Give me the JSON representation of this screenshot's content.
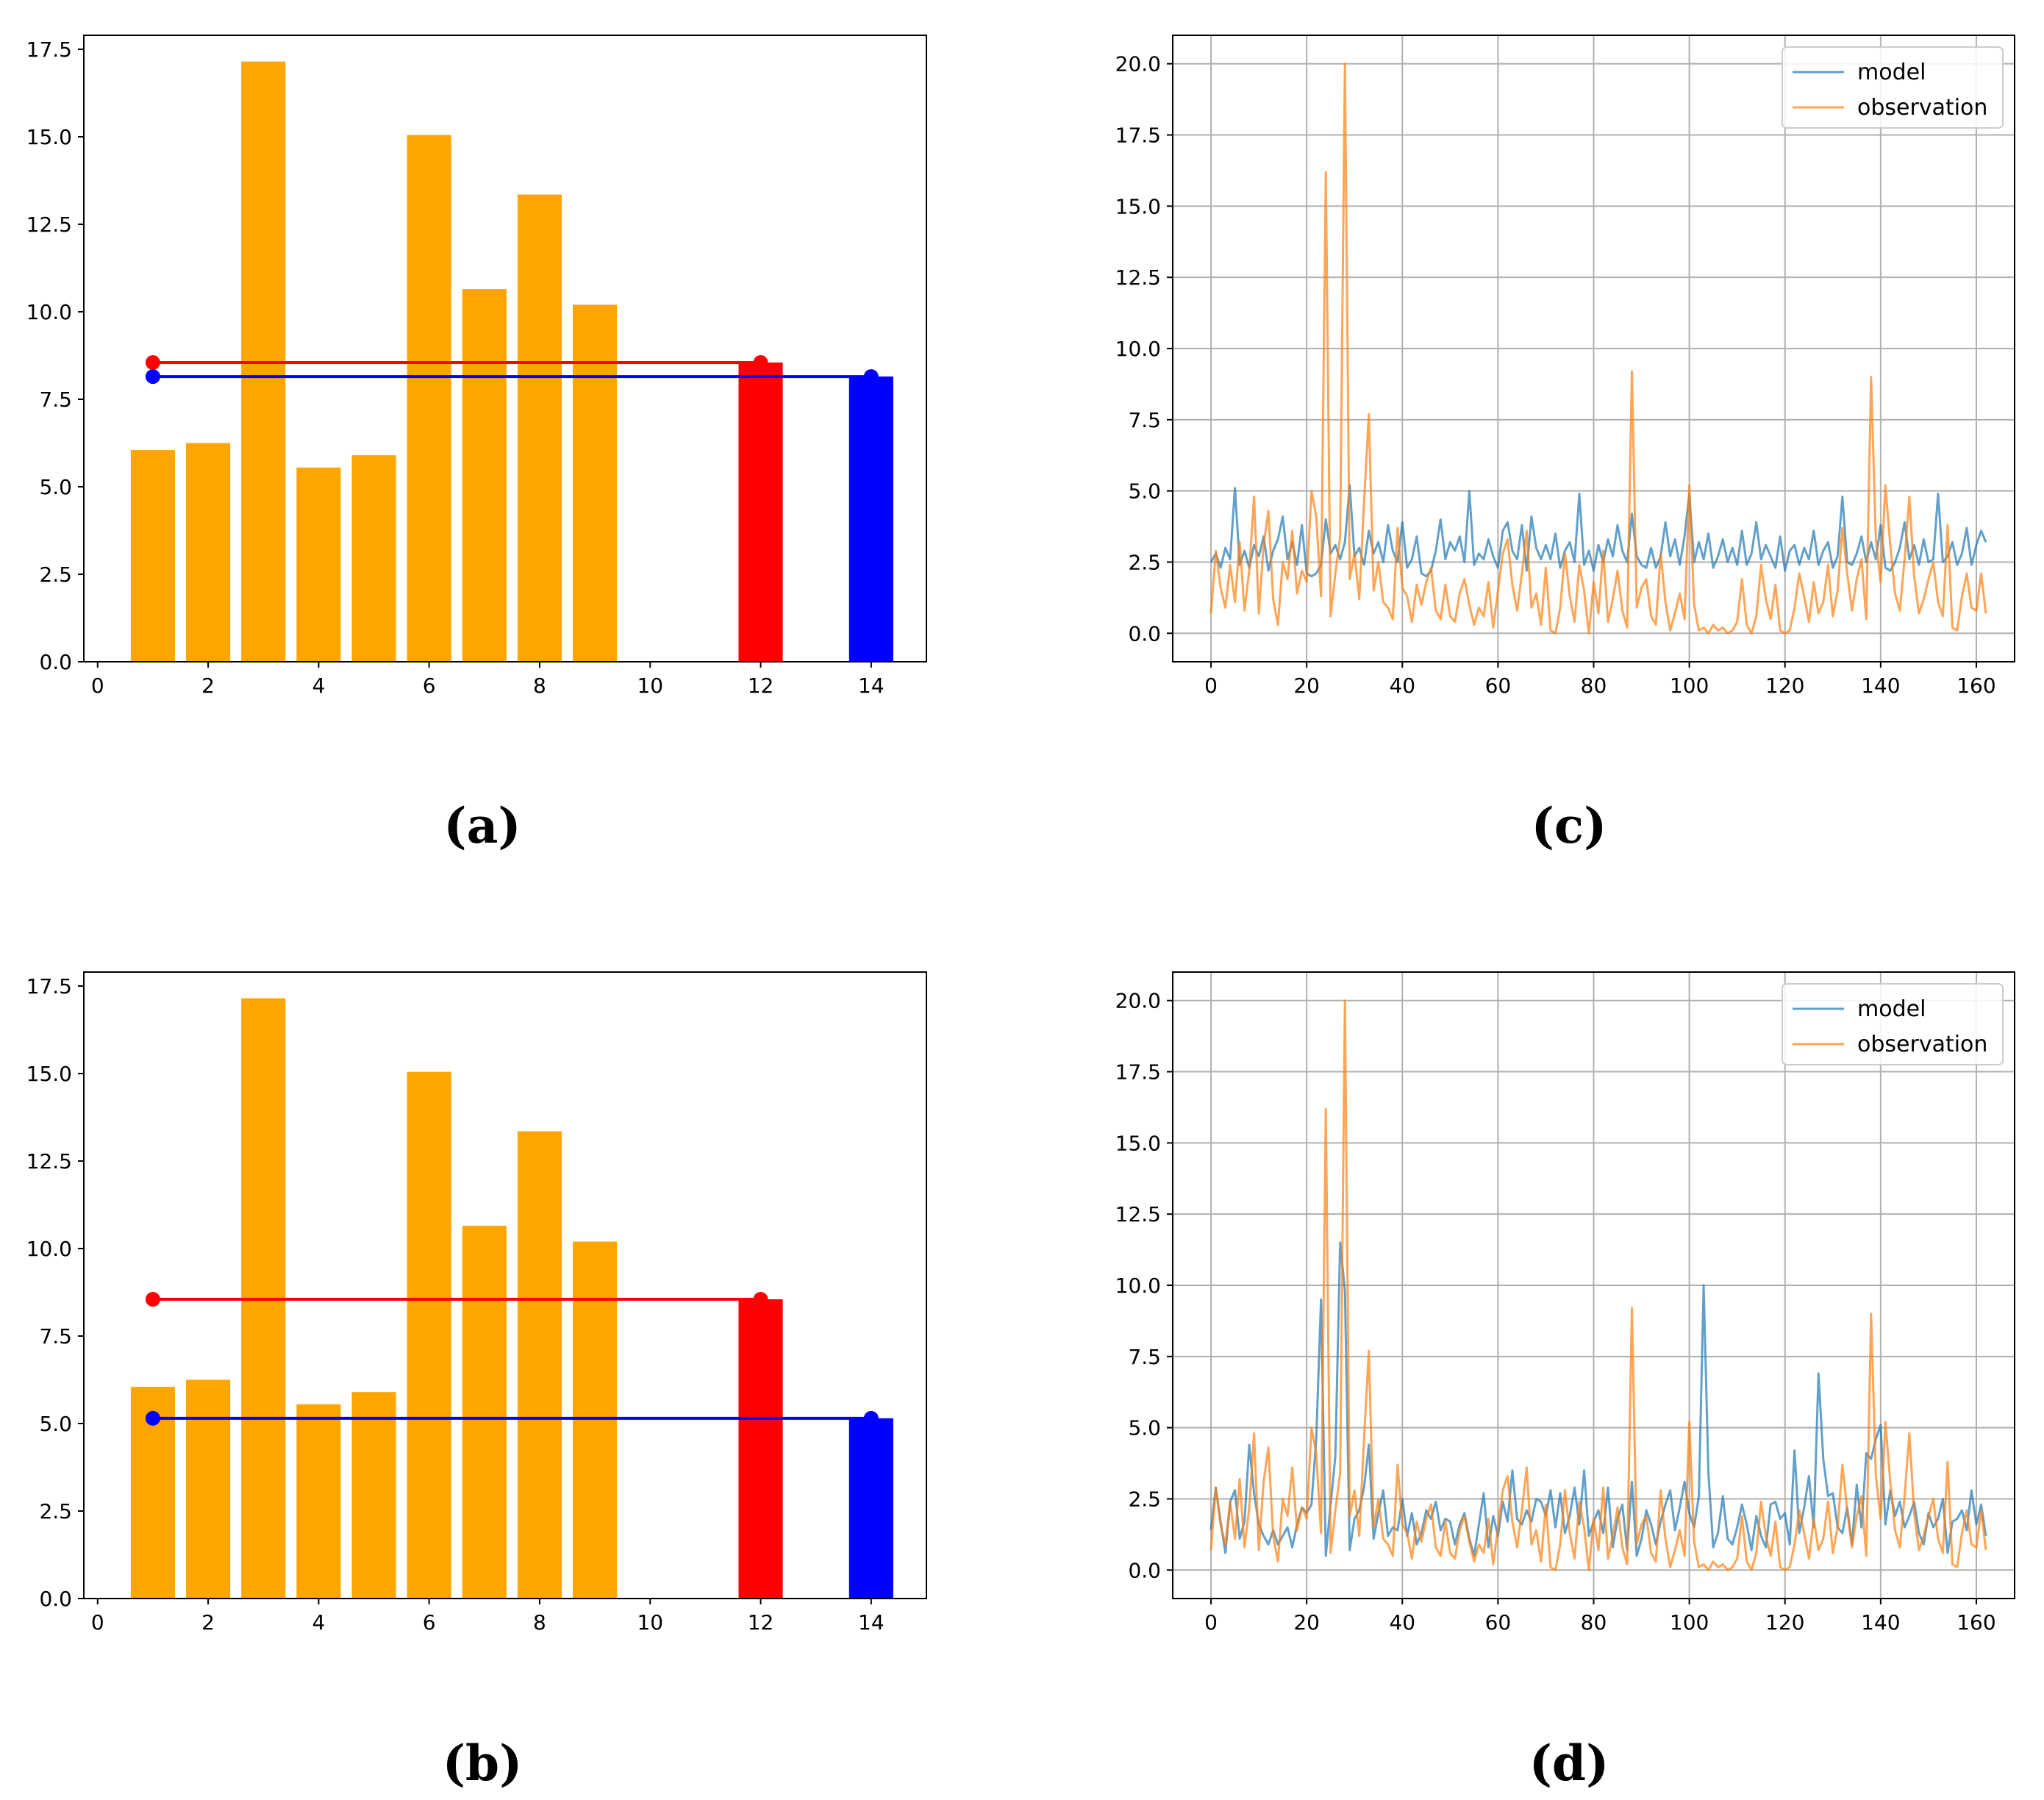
{
  "figure": {
    "captions": [
      "(a)",
      "(b)",
      "(c)",
      "(d)"
    ]
  },
  "colors": {
    "bar": "#ffa500",
    "highlight_red": "#ff0000",
    "highlight_blue": "#0000ff",
    "model": "#1f77b4",
    "observation": "#ff7f0e",
    "grid": "#b0b0b0",
    "axis": "#000000"
  },
  "chart_data": [
    {
      "id": "a",
      "type": "bar",
      "caption": "(a)",
      "x": [
        1,
        2,
        3,
        4,
        5,
        6,
        7,
        8,
        9
      ],
      "values": [
        6.05,
        6.25,
        17.15,
        5.55,
        5.9,
        15.05,
        10.65,
        13.35,
        10.2
      ],
      "bar_color": "#ffa500",
      "highlight_bars": [
        {
          "x": 12,
          "value": 8.55,
          "color": "#ff0000"
        },
        {
          "x": 14,
          "value": 8.15,
          "color": "#0000ff"
        }
      ],
      "reference_lines": [
        {
          "x_start": 1,
          "x_end": 12,
          "y": 8.55,
          "color": "#ff0000"
        },
        {
          "x_start": 1,
          "x_end": 14,
          "y": 8.15,
          "color": "#0000ff"
        }
      ],
      "xlim": [
        -0.25,
        15.0
      ],
      "ylim": [
        0,
        17.9
      ],
      "xticks": [
        0,
        2,
        4,
        6,
        8,
        10,
        12,
        14
      ],
      "xtick_labels": [
        "0",
        "2",
        "4",
        "6",
        "8",
        "10",
        "12",
        "14"
      ],
      "yticks": [
        0,
        2.5,
        5,
        7.5,
        10,
        12.5,
        15,
        17.5
      ],
      "ytick_labels": [
        "0.0",
        "2.5",
        "5.0",
        "7.5",
        "10.0",
        "12.5",
        "15.0",
        "17.5"
      ],
      "grid": false
    },
    {
      "id": "b",
      "type": "bar",
      "caption": "(b)",
      "x": [
        1,
        2,
        3,
        4,
        5,
        6,
        7,
        8,
        9
      ],
      "values": [
        6.05,
        6.25,
        17.15,
        5.55,
        5.9,
        15.05,
        10.65,
        13.35,
        10.2
      ],
      "bar_color": "#ffa500",
      "highlight_bars": [
        {
          "x": 12,
          "value": 8.55,
          "color": "#ff0000"
        },
        {
          "x": 14,
          "value": 5.15,
          "color": "#0000ff"
        }
      ],
      "reference_lines": [
        {
          "x_start": 1,
          "x_end": 12,
          "y": 8.55,
          "color": "#ff0000"
        },
        {
          "x_start": 1,
          "x_end": 14,
          "y": 5.15,
          "color": "#0000ff"
        }
      ],
      "xlim": [
        -0.25,
        15.0
      ],
      "ylim": [
        0,
        17.9
      ],
      "xticks": [
        0,
        2,
        4,
        6,
        8,
        10,
        12,
        14
      ],
      "xtick_labels": [
        "0",
        "2",
        "4",
        "6",
        "8",
        "10",
        "12",
        "14"
      ],
      "yticks": [
        0,
        2.5,
        5,
        7.5,
        10,
        12.5,
        15,
        17.5
      ],
      "ytick_labels": [
        "0.0",
        "2.5",
        "5.0",
        "7.5",
        "10.0",
        "12.5",
        "15.0",
        "17.5"
      ],
      "grid": false
    },
    {
      "id": "c",
      "type": "line",
      "caption": "(c)",
      "xlim": [
        -8,
        168
      ],
      "ylim": [
        -1.0,
        21.0
      ],
      "xticks": [
        0,
        20,
        40,
        60,
        80,
        100,
        120,
        140,
        160
      ],
      "xtick_labels": [
        "0",
        "20",
        "40",
        "60",
        "80",
        "100",
        "120",
        "140",
        "160"
      ],
      "yticks": [
        0,
        2.5,
        5,
        7.5,
        10,
        12.5,
        15,
        17.5,
        20
      ],
      "ytick_labels": [
        "0.0",
        "2.5",
        "5.0",
        "7.5",
        "10.0",
        "12.5",
        "15.0",
        "17.5",
        "20.0"
      ],
      "grid": true,
      "legend": {
        "placement": "top-right",
        "entries": [
          "model",
          "observation"
        ]
      },
      "series": [
        {
          "name": "model",
          "color": "#1f77b4",
          "values": [
            2.5,
            2.8,
            2.3,
            3.0,
            2.6,
            5.1,
            2.4,
            2.9,
            2.3,
            3.1,
            2.7,
            3.4,
            2.2,
            2.9,
            3.3,
            4.1,
            2.6,
            3.2,
            2.4,
            3.8,
            2.1,
            2.0,
            2.1,
            2.4,
            4.0,
            2.8,
            3.1,
            2.6,
            3.2,
            5.2,
            2.7,
            3.0,
            2.4,
            3.6,
            2.8,
            3.2,
            2.5,
            3.8,
            2.9,
            2.5,
            3.9,
            2.3,
            2.6,
            3.4,
            2.1,
            2.0,
            2.2,
            2.9,
            4.0,
            2.6,
            3.2,
            2.9,
            3.4,
            2.5,
            5.0,
            2.4,
            2.8,
            2.6,
            3.3,
            2.7,
            2.3,
            3.6,
            3.9,
            2.9,
            2.6,
            3.8,
            2.2,
            4.1,
            3.0,
            2.6,
            3.1,
            2.6,
            3.5,
            2.3,
            2.9,
            3.2,
            2.5,
            4.9,
            2.4,
            2.9,
            2.2,
            3.1,
            2.5,
            3.3,
            2.7,
            3.8,
            2.9,
            2.5,
            4.2,
            2.7,
            2.4,
            2.3,
            3.0,
            2.3,
            2.7,
            3.9,
            2.7,
            3.3,
            2.4,
            3.4,
            4.9,
            2.5,
            3.2,
            2.6,
            3.5,
            2.3,
            2.7,
            3.3,
            2.5,
            3.0,
            2.4,
            3.6,
            2.4,
            2.8,
            3.9,
            2.6,
            3.1,
            2.7,
            2.3,
            3.4,
            2.2,
            2.9,
            3.1,
            2.4,
            3.0,
            2.6,
            3.6,
            2.4,
            2.9,
            3.2,
            2.3,
            2.7,
            4.8,
            2.5,
            2.4,
            2.8,
            3.4,
            2.5,
            3.2,
            2.6,
            3.8,
            2.3,
            2.2,
            2.5,
            3.0,
            3.9,
            2.6,
            3.1,
            2.4,
            3.3,
            2.5,
            2.6,
            4.9,
            2.5,
            2.7,
            3.2,
            2.4,
            2.8,
            3.7,
            2.4,
            3.1,
            3.6,
            3.2
          ]
        },
        {
          "name": "observation",
          "color": "#ff7f0e",
          "values": [
            0.7,
            2.9,
            1.6,
            0.9,
            2.4,
            1.1,
            3.2,
            0.8,
            2.2,
            4.8,
            0.7,
            3.1,
            4.3,
            1.2,
            0.3,
            2.5,
            1.9,
            3.6,
            1.4,
            2.2,
            1.8,
            5.0,
            4.1,
            1.3,
            16.2,
            0.6,
            2.1,
            3.4,
            20.0,
            1.9,
            2.8,
            1.2,
            4.6,
            7.7,
            1.5,
            2.5,
            1.1,
            0.9,
            0.5,
            3.7,
            1.6,
            1.3,
            0.4,
            1.7,
            1.0,
            1.8,
            2.3,
            0.8,
            0.5,
            1.7,
            0.6,
            0.4,
            1.4,
            1.9,
            1.0,
            0.3,
            0.9,
            0.6,
            1.8,
            0.2,
            1.5,
            2.8,
            3.3,
            1.7,
            0.8,
            2.1,
            3.6,
            0.9,
            1.4,
            0.3,
            2.3,
            0.1,
            0.0,
            0.9,
            2.8,
            1.3,
            0.4,
            2.4,
            1.5,
            0.0,
            1.8,
            0.7,
            2.9,
            0.4,
            1.2,
            2.2,
            0.8,
            0.2,
            9.2,
            0.9,
            1.6,
            1.9,
            0.6,
            0.3,
            2.8,
            1.1,
            0.1,
            0.7,
            1.4,
            0.5,
            5.2,
            1.0,
            0.1,
            0.2,
            0.0,
            0.3,
            0.1,
            0.2,
            0.0,
            0.1,
            0.4,
            1.9,
            0.3,
            0.0,
            0.6,
            2.4,
            1.2,
            0.5,
            1.7,
            0.1,
            0.0,
            0.1,
            0.9,
            2.1,
            1.3,
            0.4,
            1.8,
            0.7,
            1.1,
            2.4,
            0.6,
            1.5,
            3.7,
            2.1,
            0.8,
            1.9,
            2.6,
            0.5,
            9.0,
            3.3,
            1.8,
            5.2,
            3.1,
            1.4,
            0.8,
            2.6,
            4.8,
            2.0,
            0.7,
            1.2,
            1.9,
            2.5,
            1.1,
            0.6,
            3.8,
            0.2,
            0.1,
            1.3,
            2.1,
            0.9,
            0.8,
            2.1,
            0.7
          ]
        }
      ]
    },
    {
      "id": "d",
      "type": "line",
      "caption": "(d)",
      "xlim": [
        -8,
        168
      ],
      "ylim": [
        -1.0,
        21.0
      ],
      "xticks": [
        0,
        20,
        40,
        60,
        80,
        100,
        120,
        140,
        160
      ],
      "xtick_labels": [
        "0",
        "20",
        "40",
        "60",
        "80",
        "100",
        "120",
        "140",
        "160"
      ],
      "yticks": [
        0,
        2.5,
        5,
        7.5,
        10,
        12.5,
        15,
        17.5,
        20
      ],
      "ytick_labels": [
        "0.0",
        "2.5",
        "5.0",
        "7.5",
        "10.0",
        "12.5",
        "15.0",
        "17.5",
        "20.0"
      ],
      "grid": true,
      "legend": {
        "placement": "top-right",
        "entries": [
          "model",
          "observation"
        ]
      },
      "series": [
        {
          "name": "model",
          "color": "#1f77b4",
          "values": [
            1.4,
            2.9,
            1.7,
            0.6,
            2.4,
            2.8,
            1.1,
            1.7,
            4.4,
            2.7,
            1.6,
            1.2,
            0.9,
            1.4,
            0.9,
            1.2,
            1.5,
            0.8,
            1.6,
            2.2,
            2.0,
            2.3,
            4.6,
            9.5,
            0.5,
            2.3,
            4.0,
            11.5,
            9.8,
            0.7,
            1.8,
            2.1,
            2.9,
            4.4,
            1.1,
            2.0,
            2.8,
            1.2,
            1.5,
            1.4,
            2.5,
            1.2,
            2.0,
            0.9,
            1.3,
            2.1,
            1.8,
            2.4,
            1.4,
            1.8,
            1.7,
            0.9,
            1.6,
            2.0,
            1.1,
            0.5,
            1.6,
            2.7,
            0.8,
            1.9,
            1.2,
            2.4,
            1.7,
            3.5,
            1.8,
            1.6,
            2.1,
            1.7,
            2.5,
            2.4,
            1.9,
            2.8,
            1.5,
            2.7,
            1.3,
            1.9,
            2.9,
            1.6,
            3.5,
            1.2,
            1.7,
            2.1,
            1.3,
            2.9,
            0.8,
            1.8,
            2.3,
            0.7,
            3.1,
            0.5,
            1.1,
            2.1,
            1.6,
            0.9,
            1.7,
            2.3,
            2.8,
            1.4,
            2.2,
            3.1,
            2.0,
            1.5,
            2.6,
            10.0,
            3.4,
            0.8,
            1.3,
            2.6,
            1.1,
            0.9,
            1.5,
            2.3,
            1.6,
            0.7,
            1.9,
            1.2,
            0.8,
            2.3,
            2.4,
            1.8,
            2.0,
            0.9,
            4.2,
            1.3,
            2.2,
            3.3,
            1.5,
            6.9,
            3.9,
            2.6,
            2.7,
            1.5,
            1.3,
            2.2,
            0.9,
            3.0,
            1.5,
            4.1,
            3.9,
            4.6,
            5.1,
            1.6,
            2.8,
            1.9,
            2.4,
            1.5,
            1.9,
            2.4,
            1.3,
            0.9,
            2.0,
            1.5,
            1.8,
            2.5,
            0.6,
            1.7,
            1.8,
            2.1,
            1.4,
            2.8,
            1.6,
            2.3,
            1.2
          ]
        },
        {
          "name": "observation",
          "color": "#ff7f0e",
          "values": [
            0.7,
            2.9,
            1.6,
            0.9,
            2.4,
            1.1,
            3.2,
            0.8,
            2.2,
            4.8,
            0.7,
            3.1,
            4.3,
            1.2,
            0.3,
            2.5,
            1.9,
            3.6,
            1.4,
            2.2,
            1.8,
            5.0,
            4.1,
            1.3,
            16.2,
            0.6,
            2.1,
            3.4,
            20.0,
            1.9,
            2.8,
            1.2,
            4.6,
            7.7,
            1.5,
            2.5,
            1.1,
            0.9,
            0.5,
            3.7,
            1.6,
            1.3,
            0.4,
            1.7,
            1.0,
            1.8,
            2.3,
            0.8,
            0.5,
            1.7,
            0.6,
            0.4,
            1.4,
            1.9,
            1.0,
            0.3,
            0.9,
            0.6,
            1.8,
            0.2,
            1.5,
            2.8,
            3.3,
            1.7,
            0.8,
            2.1,
            3.6,
            0.9,
            1.4,
            0.3,
            2.3,
            0.1,
            0.0,
            0.9,
            2.8,
            1.3,
            0.4,
            2.4,
            1.5,
            0.0,
            1.8,
            0.7,
            2.9,
            0.4,
            1.2,
            2.2,
            0.8,
            0.2,
            9.2,
            0.9,
            1.6,
            1.9,
            0.6,
            0.3,
            2.8,
            1.1,
            0.1,
            0.7,
            1.4,
            0.5,
            5.2,
            1.0,
            0.1,
            0.2,
            0.0,
            0.3,
            0.1,
            0.2,
            0.0,
            0.1,
            0.4,
            1.9,
            0.3,
            0.0,
            0.6,
            2.4,
            1.2,
            0.5,
            1.7,
            0.1,
            0.0,
            0.1,
            0.9,
            2.1,
            1.3,
            0.4,
            1.8,
            0.7,
            1.1,
            2.4,
            0.6,
            1.5,
            3.7,
            2.1,
            0.8,
            1.9,
            2.6,
            0.5,
            9.0,
            3.3,
            1.8,
            5.2,
            3.1,
            1.4,
            0.8,
            2.6,
            4.8,
            2.0,
            0.7,
            1.2,
            1.9,
            2.5,
            1.1,
            0.6,
            3.8,
            0.2,
            0.1,
            1.3,
            2.1,
            0.9,
            0.8,
            2.1,
            0.7
          ]
        }
      ]
    }
  ]
}
